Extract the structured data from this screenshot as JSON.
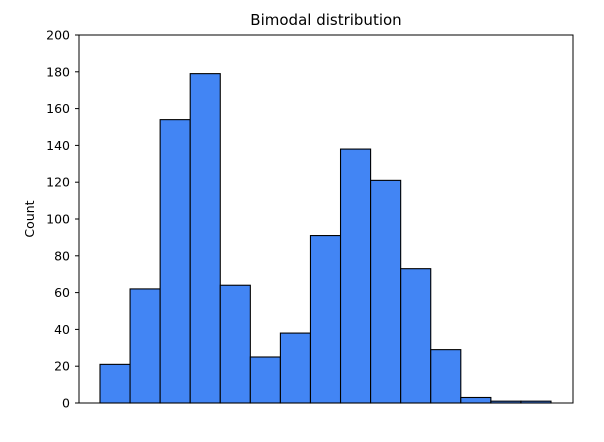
{
  "chart_data": {
    "type": "bar",
    "title": "Bimodal distribution",
    "xlabel": "",
    "ylabel": "Count",
    "ylim": [
      0,
      200
    ],
    "yticks": [
      0,
      20,
      40,
      60,
      80,
      100,
      120,
      140,
      160,
      180,
      200
    ],
    "xticks_visible": false,
    "grid": false,
    "bar_color": "#4285f4",
    "edge_color": "#000000",
    "bins": 15,
    "values": [
      21,
      62,
      154,
      179,
      64,
      25,
      38,
      91,
      138,
      121,
      73,
      29,
      3,
      1,
      1
    ]
  }
}
